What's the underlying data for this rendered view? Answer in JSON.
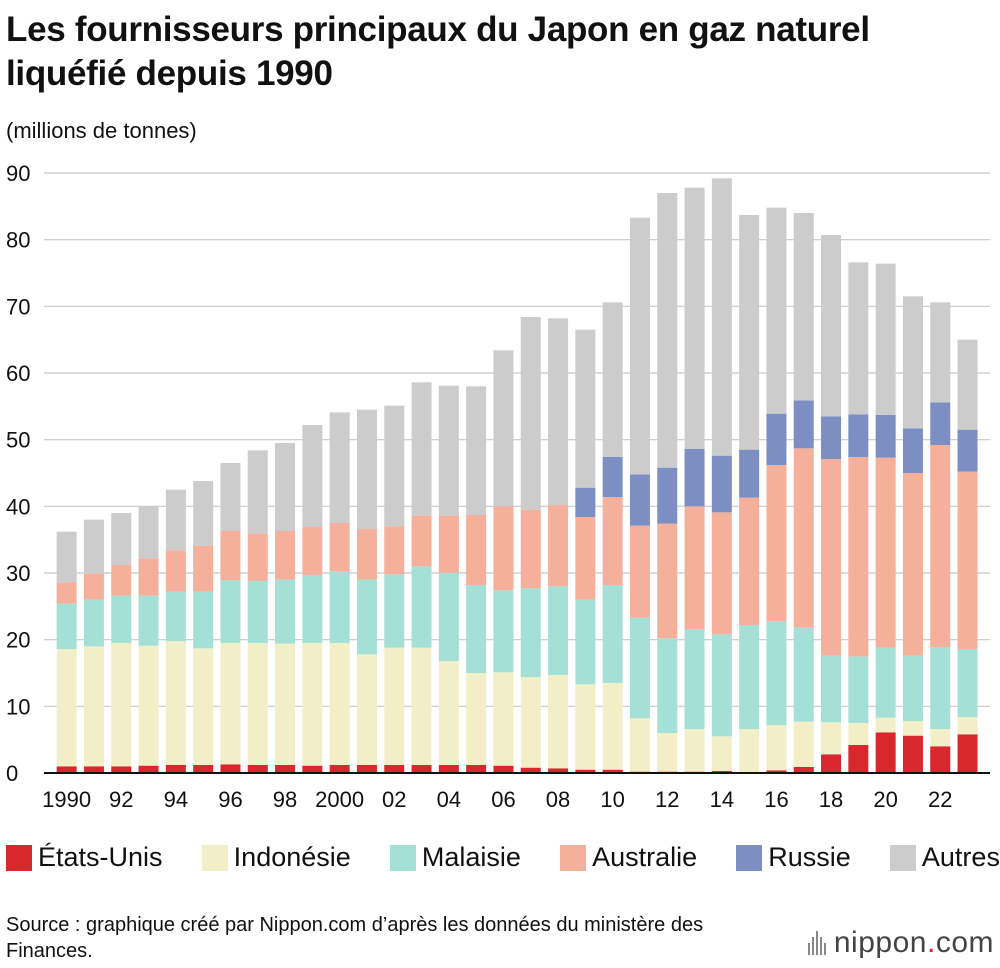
{
  "chart_data": {
    "type": "bar",
    "stacked": true,
    "title": "Les fournisseurs principaux du Japon en gaz naturel liquéfié depuis 1990",
    "ylabel": "(millions de tonnes)",
    "xlabel": "",
    "ylim": [
      0,
      90
    ],
    "yticks": [
      0,
      10,
      20,
      30,
      40,
      50,
      60,
      70,
      80,
      90
    ],
    "grid": true,
    "legend_position": "bottom",
    "x": [
      1990,
      1991,
      1992,
      1993,
      1994,
      1995,
      1996,
      1997,
      1998,
      1999,
      2000,
      2001,
      2002,
      2003,
      2004,
      2005,
      2006,
      2007,
      2008,
      2009,
      2010,
      2011,
      2012,
      2013,
      2014,
      2015,
      2016,
      2017,
      2018,
      2019,
      2020,
      2021,
      2022,
      2023
    ],
    "tick_labels": [
      "1990",
      "92",
      "94",
      "96",
      "98",
      "2000",
      "02",
      "04",
      "06",
      "08",
      "10",
      "12",
      "14",
      "16",
      "18",
      "20",
      "22"
    ],
    "tick_years": [
      1990,
      1992,
      1994,
      1996,
      1998,
      2000,
      2002,
      2004,
      2006,
      2008,
      2010,
      2012,
      2014,
      2016,
      2018,
      2020,
      2022
    ],
    "series": [
      {
        "name": "États-Unis",
        "color": "#d9272e",
        "values": [
          1.0,
          1.0,
          1.0,
          1.1,
          1.2,
          1.2,
          1.3,
          1.2,
          1.2,
          1.1,
          1.2,
          1.2,
          1.2,
          1.2,
          1.2,
          1.2,
          1.1,
          0.8,
          0.7,
          0.5,
          0.5,
          0.2,
          0.2,
          0.2,
          0.3,
          0.1,
          0.4,
          0.9,
          2.8,
          4.2,
          6.1,
          5.6,
          4.0,
          5.8
        ]
      },
      {
        "name": "Indonésie",
        "color": "#f2eec8",
        "values": [
          17.6,
          18.0,
          18.5,
          18.0,
          18.6,
          17.5,
          18.2,
          18.3,
          18.2,
          18.4,
          18.3,
          16.6,
          17.6,
          17.6,
          15.6,
          13.8,
          14.0,
          13.6,
          14.0,
          12.8,
          13.0,
          8.0,
          5.8,
          6.4,
          5.2,
          6.5,
          6.8,
          6.8,
          4.8,
          3.3,
          2.2,
          2.2,
          2.6,
          2.6
        ]
      },
      {
        "name": "Malaisie",
        "color": "#a5e0d6",
        "values": [
          6.8,
          7.0,
          7.1,
          7.5,
          7.4,
          8.5,
          9.4,
          9.3,
          9.6,
          10.2,
          10.8,
          11.2,
          11.0,
          12.2,
          13.2,
          13.2,
          12.3,
          13.3,
          13.3,
          12.7,
          14.7,
          15.1,
          14.2,
          15.0,
          15.3,
          15.6,
          15.6,
          14.2,
          10.0,
          10.0,
          10.5,
          9.8,
          12.3,
          10.2
        ]
      },
      {
        "name": "Australie",
        "color": "#f4b09a",
        "values": [
          3.2,
          3.9,
          4.6,
          5.6,
          6.2,
          6.9,
          7.4,
          7.1,
          7.3,
          7.2,
          7.2,
          7.6,
          7.2,
          7.6,
          8.6,
          10.5,
          12.6,
          11.8,
          12.2,
          12.4,
          13.2,
          13.8,
          17.2,
          18.4,
          18.3,
          19.1,
          23.4,
          26.8,
          29.5,
          29.9,
          28.5,
          27.4,
          30.3,
          26.6
        ]
      },
      {
        "name": "Russie",
        "color": "#7d8ec2",
        "values": [
          0,
          0,
          0,
          0,
          0,
          0,
          0,
          0,
          0,
          0,
          0,
          0,
          0,
          0,
          0,
          0,
          0,
          0,
          0,
          4.4,
          6.0,
          7.7,
          8.4,
          8.6,
          8.5,
          7.2,
          7.7,
          7.2,
          6.4,
          6.4,
          6.4,
          6.7,
          6.4,
          6.3
        ]
      },
      {
        "name": "Autres",
        "color": "#cccccc",
        "values": [
          7.6,
          8.1,
          7.8,
          7.8,
          9.1,
          9.7,
          10.2,
          12.5,
          13.2,
          15.3,
          16.6,
          17.9,
          18.1,
          20.0,
          19.5,
          19.3,
          23.4,
          28.9,
          28.0,
          23.7,
          23.2,
          38.5,
          41.2,
          39.2,
          41.6,
          35.2,
          30.9,
          28.1,
          27.2,
          22.8,
          22.7,
          19.8,
          15.0,
          13.5
        ]
      }
    ]
  },
  "source_note": "Source : graphique créé par Nippon.com d’après les données du ministère des Finances.",
  "brand": {
    "name": "nippon",
    "dot": ".",
    "suffix": "com"
  }
}
